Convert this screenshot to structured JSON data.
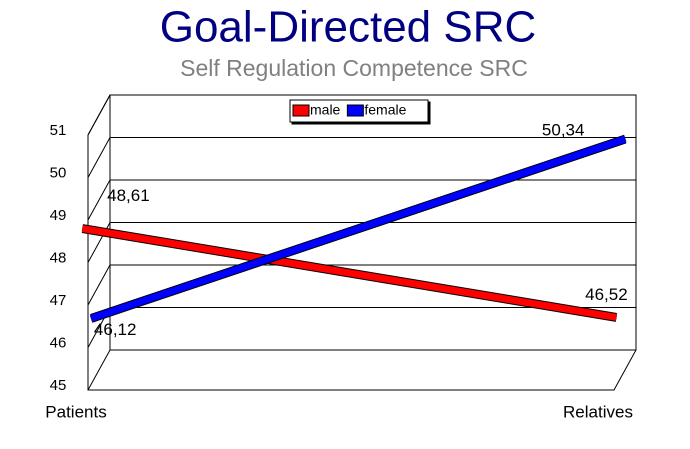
{
  "chart_data": {
    "type": "line",
    "title": "Goal-Directed SRC",
    "subtitle": "Self Regulation Competence SRC",
    "categories": [
      "Patients",
      "Relatives"
    ],
    "series": [
      {
        "name": "male",
        "color": "#ff0000",
        "values": [
          48.61,
          46.52
        ],
        "value_labels": [
          "48,61",
          "46,52"
        ]
      },
      {
        "name": "female",
        "color": "#0000ff",
        "values": [
          46.12,
          50.34
        ],
        "value_labels": [
          "46,12",
          "50,34"
        ]
      }
    ],
    "ylim": [
      45,
      51
    ],
    "yticks": [
      45,
      46,
      47,
      48,
      49,
      50,
      51
    ],
    "grid": true,
    "legend": "top"
  }
}
